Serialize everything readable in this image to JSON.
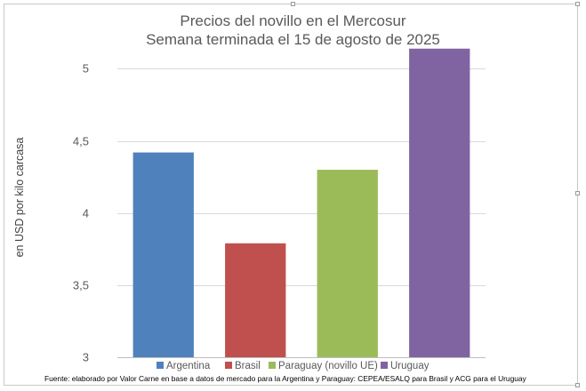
{
  "chart_data": {
    "type": "bar",
    "title": "Precios del novillo en el Mercosur",
    "subtitle": "Semana terminada el 15 de agosto de 2025",
    "xlabel": "",
    "ylabel": "en USD por kilo carcasa",
    "categories": [
      "Argentina",
      "Brasil",
      "Paraguay (novillo UE)",
      "Uruguay"
    ],
    "values": [
      4.42,
      3.79,
      4.3,
      5.14
    ],
    "colors": [
      "#4f81bd",
      "#c0504d",
      "#9bbb59",
      "#8064a2"
    ],
    "ylim": [
      3,
      5.2
    ],
    "yticks": [
      3,
      3.5,
      4,
      4.5,
      5
    ],
    "ytick_labels": [
      "3",
      "3,5",
      "4",
      "4,5",
      "5"
    ],
    "grid": true,
    "legend": "bottom"
  },
  "source": "Fuente: elaborado por Valor Carne en base a datos de mercado para la Argentina y Paraguay: CEPEA/ESALQ para Brasil y ACG para el Uruguay"
}
